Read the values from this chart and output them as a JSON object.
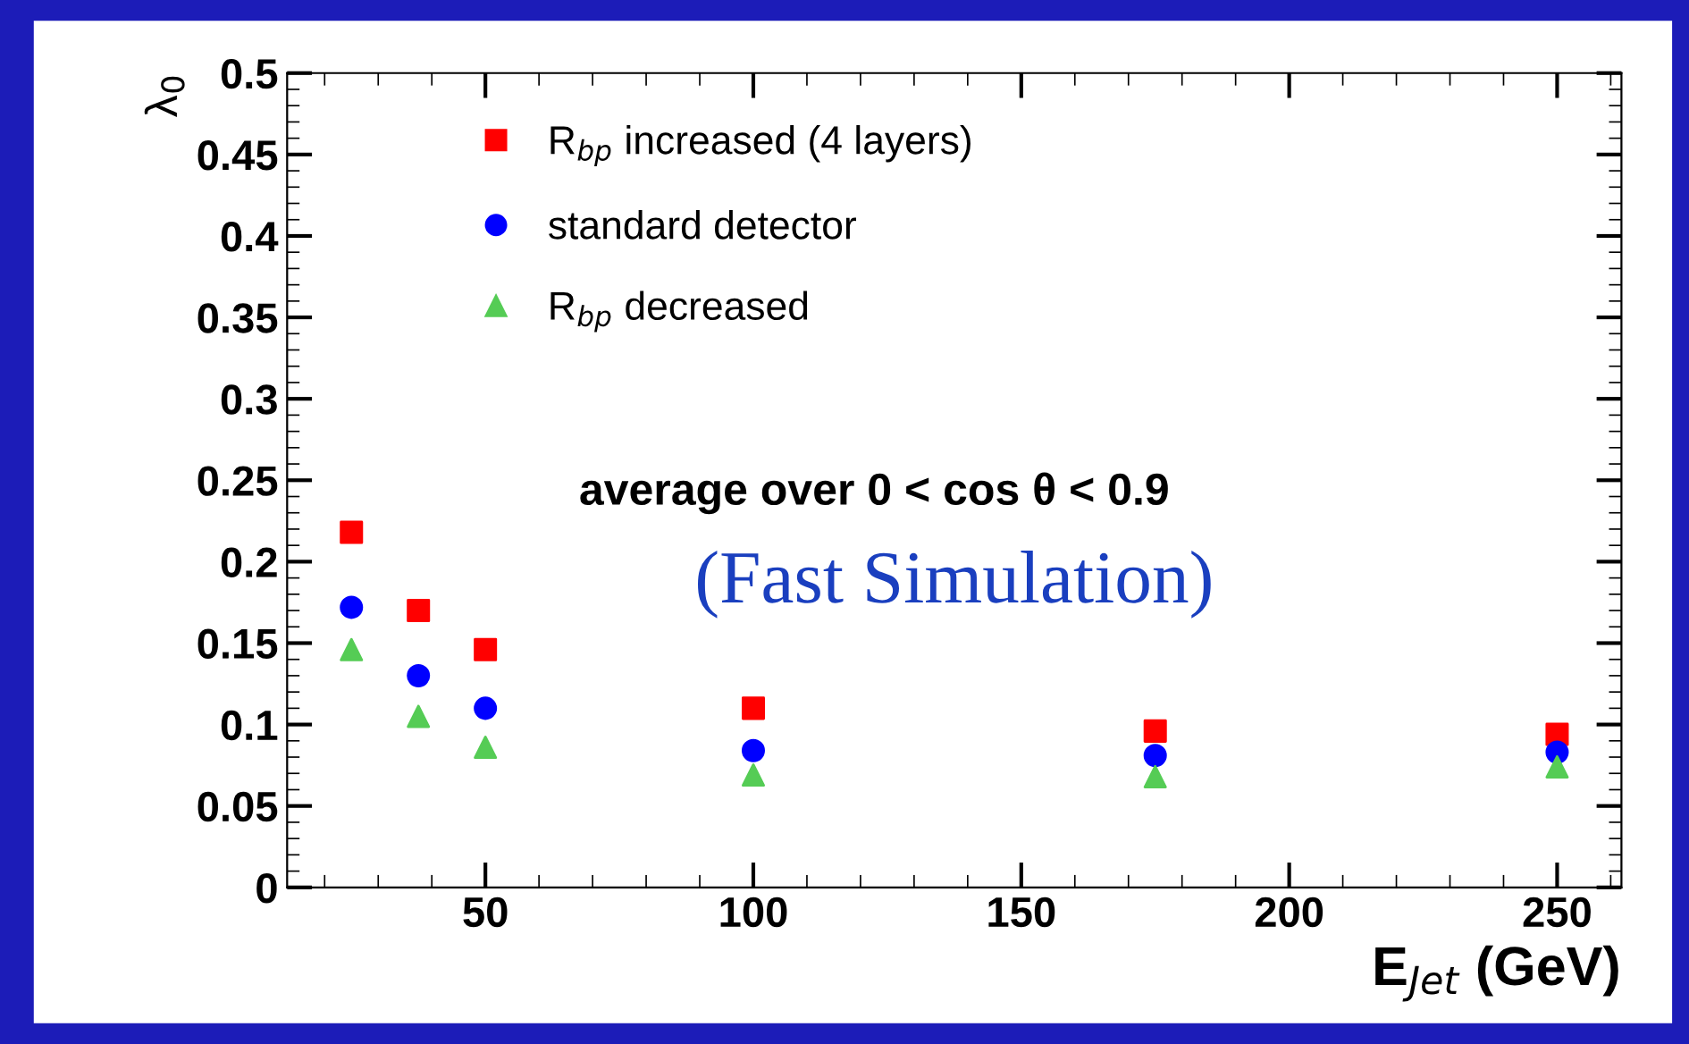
{
  "chart_data": {
    "type": "scatter",
    "xlabel": "E$_{Jet}$ (GeV)",
    "ylabel": "λ$_{0}$",
    "x": [
      25,
      37.5,
      50,
      100,
      175,
      250
    ],
    "series": [
      {
        "name": "R$_{bp}$ increased (4 layers)",
        "color": "#ff0000",
        "marker": "square",
        "values": [
          0.218,
          0.17,
          0.146,
          0.11,
          0.096,
          0.094
        ]
      },
      {
        "name": "standard detector",
        "color": "#0000ff",
        "marker": "circle",
        "values": [
          0.172,
          0.13,
          0.11,
          0.084,
          0.081,
          0.083
        ]
      },
      {
        "name": "R$_{bp}$ decreased",
        "color": "#55cc55",
        "marker": "triangle",
        "values": [
          0.146,
          0.105,
          0.086,
          0.069,
          0.068,
          0.074
        ]
      }
    ],
    "annotations": [
      "average over 0 < cos θ < 0.9",
      "(Fast Simulation)"
    ],
    "xlim": [
      13,
      262
    ],
    "xticks": [
      50,
      100,
      150,
      200,
      250
    ],
    "ylim": [
      0,
      0.5
    ],
    "yticks": [
      0,
      0.05,
      0.1,
      0.15,
      0.2,
      0.25,
      0.3,
      0.35,
      0.4,
      0.45,
      0.5
    ],
    "grid": false,
    "legend": "top left"
  }
}
